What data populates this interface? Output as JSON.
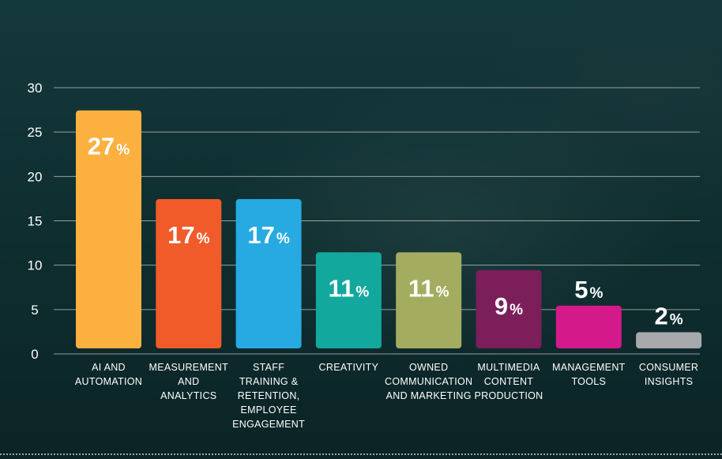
{
  "chart_data": {
    "type": "bar",
    "categories": [
      [
        "AI AND",
        "AUTOMATION"
      ],
      [
        "MEASUREMENT",
        "AND",
        "ANALYTICS"
      ],
      [
        "STAFF",
        "TRAINING &",
        "RETENTION,",
        "EMPLOYEE",
        "ENGAGEMENT"
      ],
      [
        "CREATIVITY"
      ],
      [
        "OWNED",
        "COMMUNICATION",
        "AND MARKETING"
      ],
      [
        "MULTIMEDIA",
        "CONTENT",
        "PRODUCTION"
      ],
      [
        "MANAGEMENT",
        "TOOLS"
      ],
      [
        "CONSUMER",
        "INSIGHTS"
      ]
    ],
    "values": [
      27,
      17,
      17,
      11,
      11,
      9,
      5,
      2
    ],
    "value_suffix": "%",
    "colors": [
      "#fbb040",
      "#f15a29",
      "#27aae1",
      "#13a89e",
      "#a4ad5f",
      "#7b1e5a",
      "#d4198a",
      "#a7a9ac"
    ],
    "ylim": [
      0,
      30
    ],
    "yticks": [
      0,
      5,
      10,
      15,
      20,
      25,
      30
    ],
    "grid": true,
    "label_inside": [
      true,
      true,
      true,
      true,
      true,
      true,
      false,
      false
    ]
  }
}
